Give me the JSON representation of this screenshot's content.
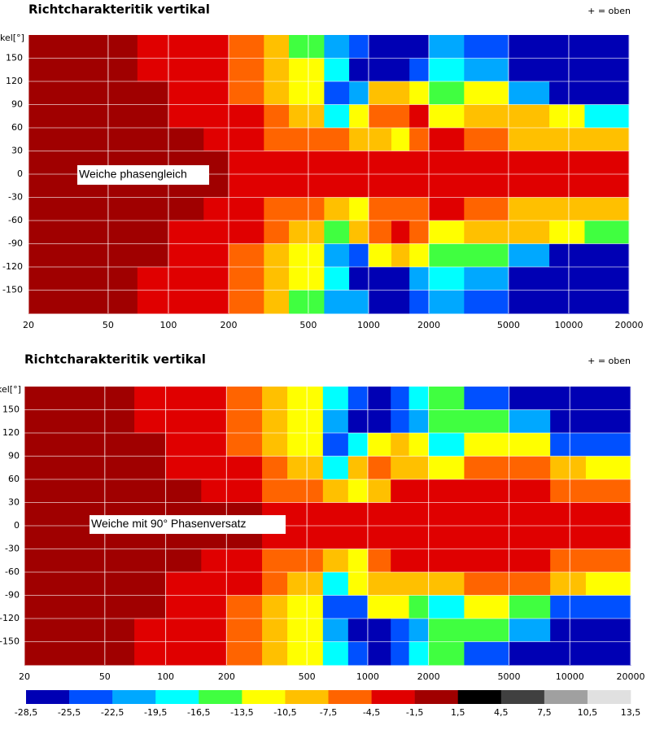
{
  "chart_data": [
    {
      "type": "heatmap",
      "title": "Richtcharakteritik vertikal",
      "note": "+ = oben",
      "ylabel": "kel[°]",
      "annotation": "Weiche phasengleich",
      "xscale": "log",
      "xlim": [
        20,
        20000
      ],
      "xticks": [
        20,
        50,
        100,
        200,
        500,
        1000,
        2000,
        5000,
        10000,
        20000
      ],
      "ylim": [
        -180,
        180
      ],
      "yticks": [
        150,
        120,
        90,
        60,
        30,
        0,
        -30,
        -60,
        -90,
        -120,
        -150
      ],
      "grid": true,
      "xbins": [
        20,
        40,
        70,
        100,
        150,
        200,
        300,
        400,
        600,
        800,
        1000,
        1300,
        1600,
        2000,
        3000,
        5000,
        8000,
        12000,
        20000
      ],
      "ybins": [
        180,
        150,
        120,
        90,
        60,
        30,
        0,
        -30,
        -60,
        -90,
        -120,
        -150,
        -180
      ],
      "values": [
        [
          0,
          0,
          -2,
          -3,
          -3,
          -6,
          -9,
          -15,
          -20,
          -24,
          -27,
          -27,
          -27,
          -21,
          -24,
          -27,
          -27,
          -27
        ],
        [
          0,
          0,
          -2,
          -3,
          -3,
          -6,
          -9,
          -12,
          -18,
          -27,
          -27,
          -27,
          -24,
          -18,
          -21,
          -27,
          -27,
          -27
        ],
        [
          0,
          0,
          -1,
          -2,
          -3,
          -5,
          -8,
          -12,
          -24,
          -20,
          -9,
          -9,
          -12,
          -15,
          -12,
          -21,
          -27,
          -27
        ],
        [
          0,
          0,
          0,
          -2,
          -3,
          -4,
          -6,
          -9,
          -18,
          -12,
          -6,
          -6,
          -3,
          -12,
          -9,
          -9,
          -12,
          -18
        ],
        [
          0,
          0,
          0,
          -1,
          -2,
          -3,
          -5,
          -6,
          -6,
          -9,
          -9,
          -12,
          -6,
          -3,
          -6,
          -9,
          -9,
          -9
        ],
        [
          0,
          0,
          0,
          0,
          0,
          -2,
          -3,
          -3,
          -3,
          -3,
          -3,
          -3,
          -3,
          -2,
          -3,
          -3,
          -2,
          -3
        ],
        [
          0,
          0,
          0,
          0,
          0,
          -2,
          -3,
          -3,
          -3,
          -3,
          -2,
          -3,
          -3,
          -2,
          -3,
          -3,
          -2,
          -3
        ],
        [
          0,
          0,
          0,
          -1,
          -2,
          -3,
          -5,
          -6,
          -9,
          -12,
          -6,
          -6,
          -6,
          -3,
          -6,
          -9,
          -9,
          -9
        ],
        [
          0,
          0,
          0,
          -2,
          -3,
          -4,
          -6,
          -9,
          -15,
          -9,
          -6,
          -3,
          -6,
          -12,
          -9,
          -9,
          -12,
          -15
        ],
        [
          0,
          0,
          -1,
          -2,
          -3,
          -5,
          -8,
          -12,
          -21,
          -24,
          -12,
          -9,
          -12,
          -15,
          -15,
          -21,
          -27,
          -27
        ],
        [
          0,
          0,
          -2,
          -3,
          -3,
          -6,
          -9,
          -12,
          -18,
          -27,
          -27,
          -27,
          -21,
          -18,
          -21,
          -27,
          -27,
          -27
        ],
        [
          0,
          0,
          -2,
          -3,
          -3,
          -6,
          -9,
          -15,
          -20,
          -21,
          -27,
          -27,
          -24,
          -21,
          -24,
          -27,
          -27,
          -27
        ]
      ]
    },
    {
      "type": "heatmap",
      "title": "Richtcharakteritik vertikal",
      "note": "+ = oben",
      "ylabel": "kel[°]",
      "annotation": "Weiche mit 90° Phasenversatz",
      "xscale": "log",
      "xlim": [
        20,
        20000
      ],
      "xticks": [
        20,
        50,
        100,
        200,
        500,
        1000,
        2000,
        5000,
        10000,
        20000
      ],
      "ylim": [
        -180,
        180
      ],
      "yticks": [
        150,
        120,
        90,
        60,
        30,
        0,
        -30,
        -60,
        -90,
        -120,
        -150
      ],
      "grid": true,
      "xbins": [
        20,
        40,
        70,
        100,
        150,
        200,
        300,
        400,
        600,
        800,
        1000,
        1300,
        1600,
        2000,
        3000,
        5000,
        8000,
        12000,
        20000
      ],
      "ybins": [
        180,
        150,
        120,
        90,
        60,
        30,
        0,
        -30,
        -60,
        -90,
        -120,
        -150,
        -180
      ],
      "values": [
        [
          0,
          0,
          -2,
          -3,
          -3,
          -6,
          -9,
          -12,
          -18,
          -24,
          -27,
          -24,
          -18,
          -15,
          -24,
          -27,
          -27,
          -27
        ],
        [
          0,
          0,
          -2,
          -3,
          -3,
          -6,
          -9,
          -12,
          -20,
          -27,
          -27,
          -24,
          -21,
          -15,
          -15,
          -21,
          -27,
          -27
        ],
        [
          0,
          0,
          -1,
          -2,
          -3,
          -5,
          -8,
          -12,
          -24,
          -18,
          -12,
          -9,
          -12,
          -18,
          -12,
          -12,
          -24,
          -24
        ],
        [
          0,
          0,
          0,
          -2,
          -3,
          -4,
          -6,
          -9,
          -18,
          -9,
          -6,
          -9,
          -9,
          -12,
          -6,
          -6,
          -9,
          -12
        ],
        [
          0,
          0,
          0,
          -1,
          -2,
          -3,
          -5,
          -6,
          -9,
          -12,
          -9,
          -3,
          -3,
          -3,
          -3,
          -3,
          -6,
          -6
        ],
        [
          0,
          0,
          0,
          0,
          0,
          -1,
          -2,
          -3,
          -3,
          -3,
          -3,
          -2,
          -2,
          -2,
          -2,
          -2,
          -3,
          -3
        ],
        [
          0,
          0,
          0,
          0,
          0,
          -1,
          -2,
          -3,
          -3,
          -3,
          -2,
          -2,
          -2,
          -2,
          -2,
          -2,
          -3,
          -3
        ],
        [
          0,
          0,
          0,
          -1,
          -2,
          -3,
          -5,
          -6,
          -9,
          -12,
          -6,
          -3,
          -3,
          -3,
          -3,
          -3,
          -6,
          -6
        ],
        [
          0,
          0,
          0,
          -2,
          -3,
          -4,
          -6,
          -9,
          -18,
          -12,
          -9,
          -9,
          -9,
          -9,
          -6,
          -6,
          -9,
          -12
        ],
        [
          0,
          0,
          -1,
          -2,
          -3,
          -5,
          -8,
          -12,
          -24,
          -24,
          -12,
          -12,
          -15,
          -18,
          -12,
          -15,
          -24,
          -24
        ],
        [
          0,
          0,
          -2,
          -3,
          -3,
          -6,
          -9,
          -12,
          -20,
          -27,
          -27,
          -24,
          -21,
          -15,
          -15,
          -21,
          -27,
          -27
        ],
        [
          0,
          0,
          -2,
          -3,
          -3,
          -6,
          -9,
          -12,
          -18,
          -24,
          -27,
          -24,
          -18,
          -15,
          -24,
          -27,
          -27,
          -27
        ]
      ]
    }
  ],
  "colorbar": {
    "levels": [
      {
        "value": -28.5,
        "label": "-28,5"
      },
      {
        "value": -25.5,
        "label": "-25,5"
      },
      {
        "value": -22.5,
        "label": "-22,5"
      },
      {
        "value": -19.5,
        "label": "-19,5"
      },
      {
        "value": -16.5,
        "label": "-16,5"
      },
      {
        "value": -13.5,
        "label": "-13,5"
      },
      {
        "value": -10.5,
        "label": "-10,5"
      },
      {
        "value": -7.5,
        "label": "-7,5"
      },
      {
        "value": -4.5,
        "label": "-4,5"
      },
      {
        "value": -1.5,
        "label": "-1,5"
      },
      {
        "value": 1.5,
        "label": "1,5"
      },
      {
        "value": 4.5,
        "label": "4,5"
      },
      {
        "value": 7.5,
        "label": "7,5"
      },
      {
        "value": 10.5,
        "label": "10,5"
      },
      {
        "value": 13.5,
        "label": "13,5"
      }
    ],
    "colors": [
      "#0000b4",
      "#0050ff",
      "#00a8ff",
      "#00ffff",
      "#40ff40",
      "#ffff00",
      "#ffc000",
      "#ff6400",
      "#e00000",
      "#a00000",
      "#000000",
      "#404040",
      "#a0a0a0",
      "#e0e0e0"
    ]
  }
}
